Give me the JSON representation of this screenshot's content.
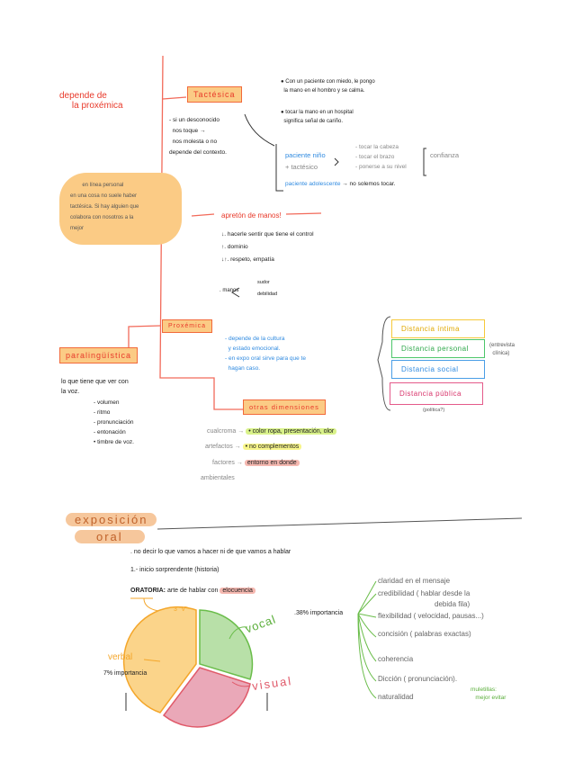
{
  "top": {
    "depende": [
      "depende de",
      "la proxémica"
    ],
    "tactesica": {
      "label": "Tactésica",
      "note": [
        "- si un desconocido",
        "nos toque →",
        "nos molesta o no",
        "depende del contexto."
      ],
      "bullets": [
        "Con un paciente con miedo, le pongo",
        "la mano en el hombro y se calma.",
        "tocar la mano en un hospital",
        "significa señal de cariño."
      ],
      "nino": "paciente niño",
      "mas": "+ tactésico",
      "acciones": [
        "- tocar la cabeza",
        "- tocar el brazo",
        "- ponerse a su nivel"
      ],
      "confianza": "confianza",
      "adolescente": "paciente adolescente",
      "adolescente_note": "→ no solemos tocar."
    },
    "cloud": [
      "en línea personal",
      "en una cosa no suele haber",
      "tactésica. Si hay alguien que",
      "colabora con nosotros a la",
      "mejor"
    ],
    "apreton": {
      "title": "apretón de manos!",
      "items": [
        "↓. hacerle sentir que tiene el control",
        "↑. dominio",
        "↓↑. respeto, empatía"
      ],
      "manos": ". manos",
      "sub": [
        "sudor",
        "debilidad"
      ]
    },
    "proxemica": {
      "label": "Proxémica",
      "notes": [
        "- depende de la cultura",
        "y estado emocional.",
        "- en expo oral sirve para que te",
        "hagan caso."
      ]
    },
    "paralinguistica": {
      "label": "paralingüística",
      "desc": [
        "lo que tiene que ver con",
        "la voz."
      ],
      "items": [
        "- volumen",
        "- ritmo",
        "- pronunciación",
        "- entonación",
        "• timbre de voz."
      ]
    },
    "distancias": [
      {
        "label": "Distancia íntima",
        "color": "#f6c93a"
      },
      {
        "label": "Distancia personal",
        "color": "#4cc66a"
      },
      {
        "label": "Distancia social",
        "color": "#4a9ee6"
      },
      {
        "label": "Distancia pública",
        "color": "#e45a8a"
      }
    ],
    "entrevista": [
      "(entrevista",
      "clínica)"
    ],
    "politica": "(política?)",
    "otras": {
      "label": "otras dimensiones",
      "rows": [
        {
          "k": "cualcroma →",
          "v": "• color ropa, presentación, olor",
          "hl": "#d9f28a"
        },
        {
          "k": "artefactos →",
          "v": "• no complementos",
          "hl": "#f7f58a"
        },
        {
          "k": "factores →",
          "v": "entorno en donde",
          "hl": "#f5b8b0"
        }
      ],
      "ambientales": "ambientales"
    }
  },
  "expo": {
    "title": [
      "exposición",
      "oral"
    ],
    "lines": [
      ". no decir lo que vamos a hacer ni de que vamos a hablar",
      "1.- inicio sorprendente (historia)"
    ],
    "oratoria": "ORATORIA:",
    "oratoria_def": "arte de hablar con",
    "elocuencia": "elocuencia",
    "tres_v": "3 \"V\"",
    "chart_data": {
      "type": "pie",
      "slices": [
        {
          "label": "vocal",
          "color": "#b8e0a8"
        },
        {
          "label": "visual",
          "color": "#eaa8b8"
        },
        {
          "label": "verbal",
          "color": "#fbd48a"
        }
      ]
    },
    "vocal_note": ".38% importancia",
    "verbal_note": "7% importancia",
    "cualidades": [
      "claridad en el mensaje",
      "credibilidad ( hablar desde la",
      "debida fila)",
      "flexibilidad ( velocidad, pausas...)",
      "concisión ( palabras exactas)",
      "coherencia",
      "Dicción ( pronunciación).",
      "naturalidad"
    ],
    "muletillas": [
      "muletillas:",
      "mejor evitar"
    ]
  }
}
